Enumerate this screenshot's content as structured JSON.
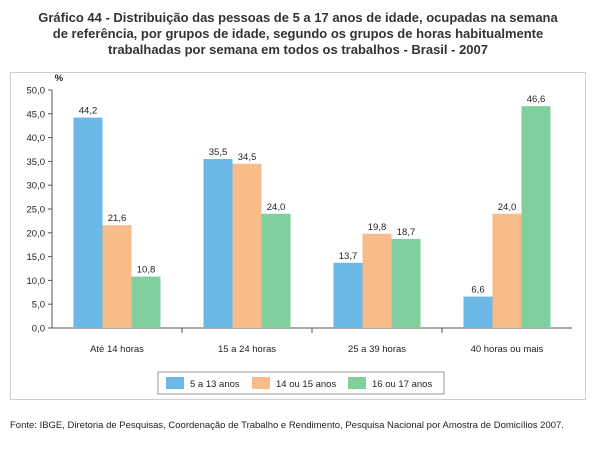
{
  "title_lines": [
    "Gráfico 44 - Distribuição das pessoas de 5 a 17 anos de idade, ocupadas na semana",
    "de referência, por grupos de idade, segundo os grupos de horas habitualmente",
    "trabalhadas por semana em todos os trabalhos - Brasil - 2007"
  ],
  "source": "Fonte: IBGE, Diretoria de Pesquisas, Coordenação de Trabalho e Rendimento, Pesquisa Nacional por Amostra de Domicílios 2007.",
  "chart_data": {
    "type": "bar",
    "ylabel": "%",
    "ylim": [
      0,
      50
    ],
    "ytick_labels": [
      "0,0",
      "5,0",
      "10,0",
      "15,0",
      "20,0",
      "25,0",
      "30,0",
      "35,0",
      "40,0",
      "45,0",
      "50,0"
    ],
    "categories": [
      "Até 14 horas",
      "15 a 24 horas",
      "25 a 39 horas",
      "40 horas ou mais"
    ],
    "series": [
      {
        "name": "5 a 13 anos",
        "color": "#6cb8e8",
        "values": [
          44.2,
          35.5,
          13.7,
          6.6
        ],
        "labels": [
          "44,2",
          "35,5",
          "13,7",
          "6,6"
        ]
      },
      {
        "name": "14 ou 15 anos",
        "color": "#f8bc8a",
        "values": [
          21.6,
          34.5,
          19.8,
          24.0
        ],
        "labels": [
          "21,6",
          "34,5",
          "19,8",
          "24,0"
        ]
      },
      {
        "name": "16 ou 17 anos",
        "color": "#7fcf9f",
        "values": [
          10.8,
          24.0,
          18.7,
          46.6
        ],
        "labels": [
          "10,8",
          "24,0",
          "18,7",
          "46,6"
        ]
      }
    ],
    "legend_position": "bottom",
    "grid": false
  }
}
